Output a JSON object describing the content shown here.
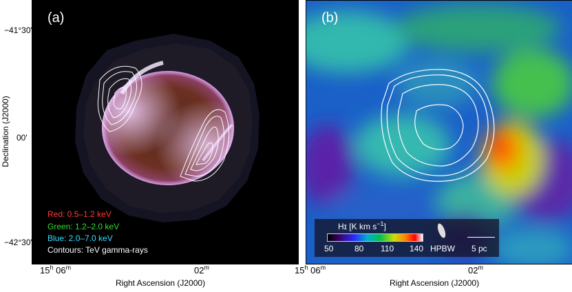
{
  "panel_a": {
    "tag": "(a)",
    "legend": [
      {
        "text": "Red: 0.5–1.2 keV",
        "color": "#ff3a3a"
      },
      {
        "text": "Green: 1.2–2.0 keV",
        "color": "#33dd33"
      },
      {
        "text": "Blue: 2.0–7.0 keV",
        "color": "#33e0ff"
      },
      {
        "text": "Contours: TeV gamma-rays",
        "color": "#ffffff"
      }
    ]
  },
  "panel_b": {
    "tag": "(b)",
    "colorbar": {
      "title": "Hɪ [K km s",
      "title_sup": "−1",
      "title_end": "]",
      "ticks": [
        "50",
        "80",
        "110",
        "140"
      ]
    },
    "hpbw_label": "HPBW",
    "scale_label": "5 pc"
  },
  "axes": {
    "ylabel": "Declination (J2000)",
    "xlabel": "Right Ascension (J2000)",
    "y_ticks": [
      "−41°30'",
      "00'",
      "−42°30'"
    ],
    "x_tick_left_a": {
      "main": "15",
      "h": "h",
      "mid": " 06",
      "m": "m"
    },
    "x_tick_right": {
      "main": "02",
      "m": "m"
    },
    "x_tick_left_b": {
      "main": "15",
      "h": "h",
      "mid": " 06",
      "m": "m"
    }
  }
}
